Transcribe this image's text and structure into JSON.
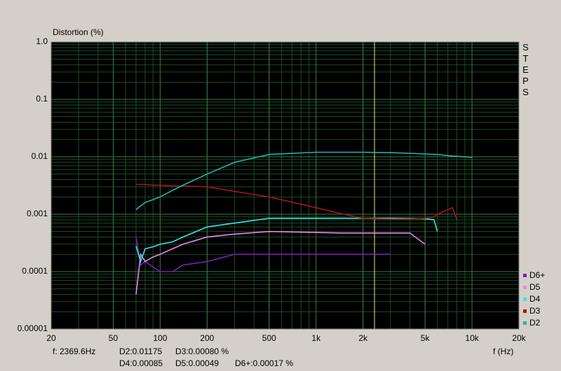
{
  "chart_data": {
    "type": "line",
    "y_label": "Distortion (%)",
    "x_label": "f (Hz)",
    "side_label": "STEPS",
    "log_x": true,
    "log_y": true,
    "grid": true,
    "minor_grid": true,
    "legend": "bottom-right",
    "xlim": [
      20,
      20000
    ],
    "ylim": [
      1e-05,
      1
    ],
    "xticks": [
      20,
      50,
      100,
      200,
      500,
      {
        "value": 1000,
        "label": "1k"
      },
      {
        "value": 2000,
        "label": "2k"
      },
      {
        "value": 5000,
        "label": "5k"
      },
      {
        "value": 10000,
        "label": "10k"
      },
      {
        "value": 20000,
        "label": "20k"
      }
    ],
    "yticks": [
      {
        "value": 1,
        "label": "1.0"
      },
      0.1,
      0.01,
      0.001,
      0.0001,
      {
        "value": 1e-05,
        "label": "0.00001"
      }
    ],
    "cursor_x": 2369.6,
    "readout": [
      "f: 2369.6Hz",
      "D2:0.01175",
      "D3:0.00080 %",
      "D4:0.00085",
      "D5:0.00049",
      "D6+:0.00017 %"
    ],
    "x": [
      70,
      75,
      80,
      90,
      100,
      120,
      140,
      200,
      300,
      500,
      1000,
      1500,
      2000,
      3000,
      4000,
      5000,
      5700,
      6000,
      7000,
      7500,
      8000,
      10000
    ],
    "series": [
      {
        "name": "D6+",
        "color": "#7a22b8",
        "values": [
          0.0004,
          0.00013,
          0.00015,
          0.00012,
          0.0001,
          0.0001,
          0.00013,
          0.00015,
          0.0002,
          0.0002,
          0.0002,
          0.0002,
          0.0002,
          0.0002,
          null,
          null,
          null,
          null,
          null,
          null,
          null,
          null
        ]
      },
      {
        "name": "D5",
        "color": "#e888e8",
        "values": [
          4e-05,
          0.0002,
          0.00015,
          0.00018,
          0.0002,
          0.00025,
          0.0003,
          0.0004,
          0.00045,
          0.0005,
          0.00048,
          0.00047,
          0.00047,
          0.00047,
          0.00047,
          0.0003,
          null,
          null,
          null,
          null,
          null,
          null
        ]
      },
      {
        "name": "D4",
        "color": "#30e8e8",
        "values": [
          0.00028,
          0.00015,
          0.00025,
          0.00027,
          0.0003,
          0.00033,
          0.0004,
          0.0006,
          0.0007,
          0.00085,
          0.00085,
          0.00085,
          0.00085,
          0.00085,
          0.00084,
          0.00083,
          0.0008,
          0.0005,
          null,
          null,
          null,
          null
        ]
      },
      {
        "name": "D3",
        "color": "#a81414",
        "values": [
          0.0033,
          0.0033,
          0.0033,
          0.0032,
          0.0032,
          0.0031,
          0.0031,
          0.003,
          0.0025,
          0.002,
          0.0013,
          0.001,
          0.00085,
          0.00082,
          0.00082,
          0.00085,
          0.0009,
          0.001,
          0.0012,
          0.0013,
          0.0008,
          null
        ]
      },
      {
        "name": "D2",
        "color": "#20b4b4",
        "values": [
          0.0012,
          0.0014,
          0.0016,
          0.0018,
          0.002,
          0.0026,
          0.0032,
          0.005,
          0.008,
          0.011,
          0.012,
          0.012,
          0.012,
          0.0118,
          0.0115,
          0.0112,
          0.011,
          0.011,
          0.0105,
          0.0103,
          0.0102,
          0.0098
        ]
      }
    ]
  }
}
